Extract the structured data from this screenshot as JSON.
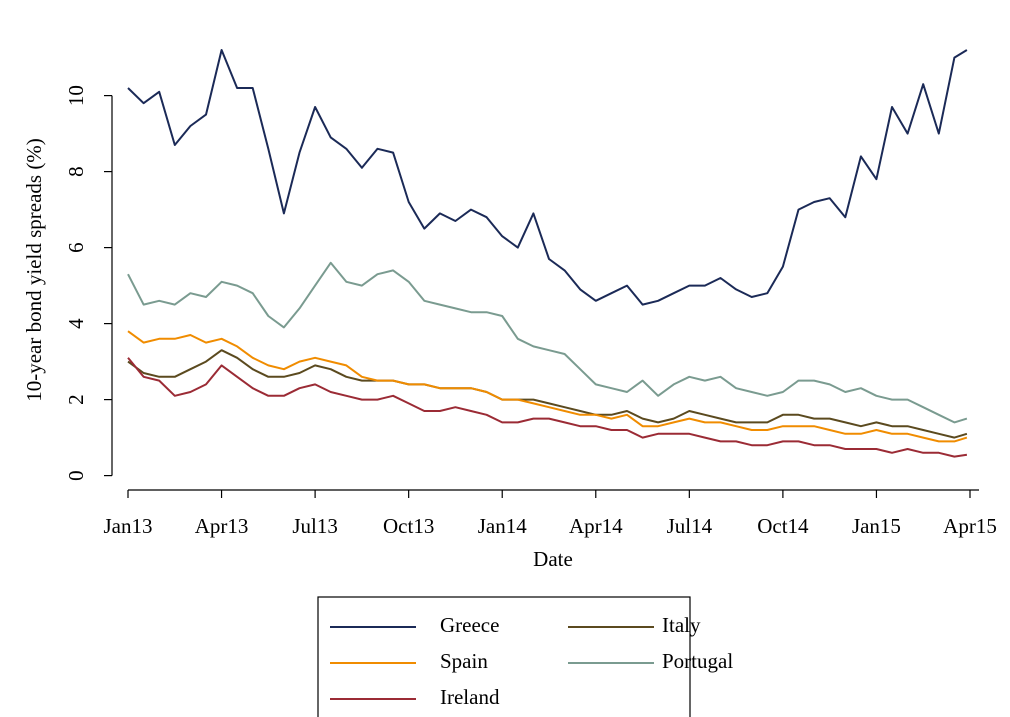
{
  "chart_data": {
    "type": "line",
    "x_label": "Date",
    "y_label": "10-year bond yield spreads (%)",
    "x": [
      0,
      0.5,
      1,
      1.5,
      2,
      2.5,
      3,
      3.5,
      4,
      4.5,
      5,
      5.5,
      6,
      6.5,
      7,
      7.5,
      8,
      8.5,
      9,
      9.5,
      10,
      10.5,
      11,
      11.5,
      12,
      12.5,
      13,
      13.5,
      14,
      14.5,
      15,
      15.5,
      16,
      16.5,
      17,
      17.5,
      18,
      18.5,
      19,
      19.5,
      20,
      20.5,
      21,
      21.5,
      22,
      22.5,
      23,
      23.5,
      24,
      24.5,
      25,
      25.5,
      26,
      26.5,
      26.9
    ],
    "xlim": [
      0,
      27
    ],
    "xticks": [
      {
        "value": 0,
        "label": "Jan13"
      },
      {
        "value": 3,
        "label": "Apr13"
      },
      {
        "value": 6,
        "label": "Jul13"
      },
      {
        "value": 9,
        "label": "Oct13"
      },
      {
        "value": 12,
        "label": "Jan14"
      },
      {
        "value": 15,
        "label": "Apr14"
      },
      {
        "value": 18,
        "label": "Jul14"
      },
      {
        "value": 21,
        "label": "Oct14"
      },
      {
        "value": 24,
        "label": "Jan15"
      },
      {
        "value": 27,
        "label": "Apr15"
      }
    ],
    "ylim": [
      -0.3,
      11.7
    ],
    "yticks": [
      0,
      2,
      4,
      6,
      8,
      10
    ],
    "legend": "below",
    "series": [
      {
        "name": "Greece",
        "color": "#1b2a57",
        "values": [
          10.2,
          9.8,
          10.1,
          8.7,
          9.2,
          9.5,
          11.2,
          10.2,
          10.2,
          8.6,
          6.9,
          8.5,
          9.7,
          8.9,
          8.6,
          8.1,
          8.6,
          8.5,
          7.2,
          6.5,
          6.9,
          6.7,
          7.0,
          6.8,
          6.3,
          6.0,
          6.9,
          5.7,
          5.4,
          4.9,
          4.6,
          4.8,
          5.0,
          4.5,
          4.6,
          4.8,
          5.0,
          5.0,
          5.2,
          4.9,
          4.7,
          4.8,
          5.5,
          7.0,
          7.2,
          7.3,
          6.8,
          8.4,
          7.8,
          9.7,
          9.0,
          10.3,
          9.0,
          11.0,
          11.2
        ]
      },
      {
        "name": "Italy",
        "color": "#5b4a1f",
        "values": [
          3.0,
          2.7,
          2.6,
          2.6,
          2.8,
          3.0,
          3.3,
          3.1,
          2.8,
          2.6,
          2.6,
          2.7,
          2.9,
          2.8,
          2.6,
          2.5,
          2.5,
          2.5,
          2.4,
          2.4,
          2.3,
          2.3,
          2.3,
          2.2,
          2.0,
          2.0,
          2.0,
          1.9,
          1.8,
          1.7,
          1.6,
          1.6,
          1.7,
          1.5,
          1.4,
          1.5,
          1.7,
          1.6,
          1.5,
          1.4,
          1.4,
          1.4,
          1.6,
          1.6,
          1.5,
          1.5,
          1.4,
          1.3,
          1.4,
          1.3,
          1.3,
          1.2,
          1.1,
          1.0,
          1.1
        ]
      },
      {
        "name": "Spain",
        "color": "#f08c00",
        "values": [
          3.8,
          3.5,
          3.6,
          3.6,
          3.7,
          3.5,
          3.6,
          3.4,
          3.1,
          2.9,
          2.8,
          3.0,
          3.1,
          3.0,
          2.9,
          2.6,
          2.5,
          2.5,
          2.4,
          2.4,
          2.3,
          2.3,
          2.3,
          2.2,
          2.0,
          2.0,
          1.9,
          1.8,
          1.7,
          1.6,
          1.6,
          1.5,
          1.6,
          1.3,
          1.3,
          1.4,
          1.5,
          1.4,
          1.4,
          1.3,
          1.2,
          1.2,
          1.3,
          1.3,
          1.3,
          1.2,
          1.1,
          1.1,
          1.2,
          1.1,
          1.1,
          1.0,
          0.9,
          0.9,
          1.0
        ]
      },
      {
        "name": "Portugal",
        "color": "#7a9b90",
        "values": [
          5.3,
          4.5,
          4.6,
          4.5,
          4.8,
          4.7,
          5.1,
          5.0,
          4.8,
          4.2,
          3.9,
          4.4,
          5.0,
          5.6,
          5.1,
          5.0,
          5.3,
          5.4,
          5.1,
          4.6,
          4.5,
          4.4,
          4.3,
          4.3,
          4.2,
          3.6,
          3.4,
          3.3,
          3.2,
          2.8,
          2.4,
          2.3,
          2.2,
          2.5,
          2.1,
          2.4,
          2.6,
          2.5,
          2.6,
          2.3,
          2.2,
          2.1,
          2.2,
          2.5,
          2.5,
          2.4,
          2.2,
          2.3,
          2.1,
          2.0,
          2.0,
          1.8,
          1.6,
          1.4,
          1.5
        ]
      },
      {
        "name": "Ireland",
        "color": "#9b2b35",
        "values": [
          3.1,
          2.6,
          2.5,
          2.1,
          2.2,
          2.4,
          2.9,
          2.6,
          2.3,
          2.1,
          2.1,
          2.3,
          2.4,
          2.2,
          2.1,
          2.0,
          2.0,
          2.1,
          1.9,
          1.7,
          1.7,
          1.8,
          1.7,
          1.6,
          1.4,
          1.4,
          1.5,
          1.5,
          1.4,
          1.3,
          1.3,
          1.2,
          1.2,
          1.0,
          1.1,
          1.1,
          1.1,
          1.0,
          0.9,
          0.9,
          0.8,
          0.8,
          0.9,
          0.9,
          0.8,
          0.8,
          0.7,
          0.7,
          0.7,
          0.6,
          0.7,
          0.6,
          0.6,
          0.5,
          0.55
        ]
      }
    ]
  }
}
